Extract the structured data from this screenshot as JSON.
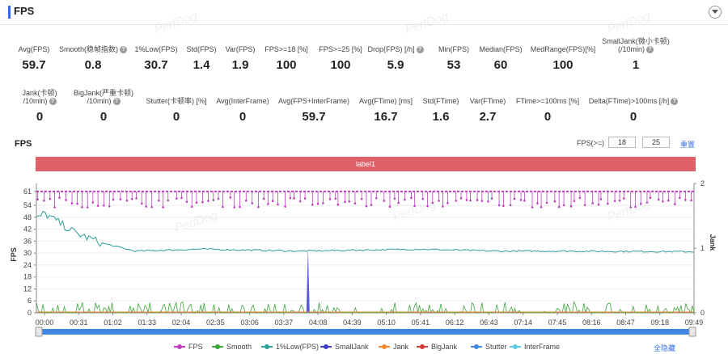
{
  "header": {
    "title": "FPS"
  },
  "metrics_row1": [
    {
      "label": "Avg(FPS)",
      "value": "59.7",
      "help": false
    },
    {
      "label": "Smooth(稳帧指数)",
      "value": "0.8",
      "help": true
    },
    {
      "label": "1%Low(FPS)",
      "value": "30.7",
      "help": false
    },
    {
      "label": "Std(FPS)",
      "value": "1.4",
      "help": false
    },
    {
      "label": "Var(FPS)",
      "value": "1.9",
      "help": false
    },
    {
      "label": "FPS>=18 [%]",
      "value": "100",
      "help": false
    },
    {
      "label": "FPS>=25 [%]",
      "value": "100",
      "help": false
    },
    {
      "label": "Drop(FPS) [/h]",
      "value": "5.9",
      "help": true
    },
    {
      "label": "Min(FPS)",
      "value": "53",
      "help": false
    },
    {
      "label": "Median(FPS)",
      "value": "60",
      "help": false
    },
    {
      "label": "MedRange(FPS)[%]",
      "value": "100",
      "help": false
    },
    {
      "label": "SmallJank(微小卡顿)",
      "label2": "(/10min)",
      "value": "1",
      "help": true
    }
  ],
  "metrics_row2": [
    {
      "label": "Jank(卡顿)",
      "label2": "/10min)",
      "value": "0",
      "help": true
    },
    {
      "label": "BigJank(严重卡顿)",
      "label2": "/10min)",
      "value": "0",
      "help": true
    },
    {
      "label": "Stutter(卡顿率) [%]",
      "value": "0",
      "help": false
    },
    {
      "label": "Avg(InterFrame)",
      "value": "0",
      "help": false
    },
    {
      "label": "Avg(FPS+InterFrame)",
      "value": "59.7",
      "help": false
    },
    {
      "label": "Avg(FTime) [ms]",
      "value": "16.7",
      "help": false
    },
    {
      "label": "Std(FTime)",
      "value": "1.6",
      "help": false
    },
    {
      "label": "Var(FTime)",
      "value": "2.7",
      "help": false
    },
    {
      "label": "FTime>=100ms [%]",
      "value": "0",
      "help": false
    },
    {
      "label": "Delta(FTime)>100ms [/h]",
      "value": "0",
      "help": true
    }
  ],
  "chart_section": {
    "title": "FPS",
    "threshold_label": "FPS(>=)",
    "threshold_1": "18",
    "threshold_2": "25",
    "reset_label": "重置",
    "label_band": "label1",
    "hide_all_label": "全隐藏"
  },
  "watermark": "PerfDog",
  "chart_data": {
    "type": "line",
    "x_ticks": [
      "00:00",
      "00:31",
      "01:02",
      "01:33",
      "02:04",
      "02:35",
      "03:06",
      "03:37",
      "04:08",
      "04:39",
      "05:10",
      "05:41",
      "06:12",
      "06:43",
      "07:14",
      "07:45",
      "08:16",
      "08:47",
      "09:18",
      "09:49"
    ],
    "y_left_label": "FPS",
    "y_left_ticks": [
      0,
      6,
      12,
      18,
      24,
      30,
      36,
      42,
      48,
      54,
      61
    ],
    "y_left_lim": [
      0,
      65
    ],
    "y_right_label": "Jank",
    "y_right_ticks": [
      0,
      1,
      2
    ],
    "y_right_lim": [
      0,
      2
    ],
    "series": [
      {
        "name": "FPS",
        "color": "#c03fc0",
        "approx": "59-61 with dips to 53-58"
      },
      {
        "name": "Smooth",
        "color": "#3aa63a",
        "approx": "0-6 noise"
      },
      {
        "name": "1%Low(FPS)",
        "color": "#2f9e9a",
        "approx_points": [
          [
            0,
            47
          ],
          [
            0.12,
            50
          ],
          [
            0.6,
            40
          ],
          [
            1.0,
            35
          ],
          [
            1.5,
            31
          ],
          [
            2.5,
            32
          ],
          [
            4.0,
            31
          ],
          [
            5.8,
            32
          ],
          [
            7.0,
            31
          ],
          [
            8.0,
            31
          ],
          [
            10.0,
            30.7
          ]
        ]
      },
      {
        "name": "SmallJank",
        "color": "#3b3bd1",
        "spike_at": "04:08",
        "spike_value": 1
      },
      {
        "name": "Jank",
        "color": "#f08a30"
      },
      {
        "name": "BigJank",
        "color": "#d23b3b"
      },
      {
        "name": "Stutter",
        "color": "#3f86e0"
      },
      {
        "name": "InterFrame",
        "color": "#5ec7e6"
      }
    ]
  }
}
